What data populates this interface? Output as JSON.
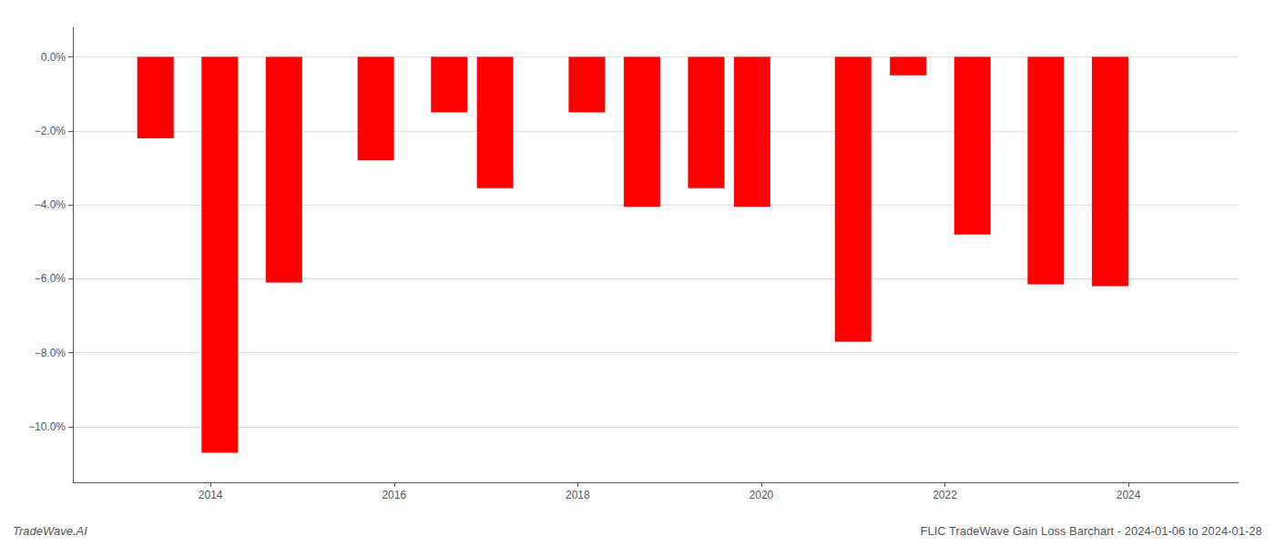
{
  "chart_data": {
    "type": "bar",
    "x": [
      2013.4,
      2014.1,
      2014.8,
      2015.8,
      2016.6,
      2017.1,
      2018.1,
      2018.7,
      2019.4,
      2019.9,
      2021.0,
      2021.6,
      2022.3,
      2023.1,
      2023.8
    ],
    "values": [
      -2.2,
      -10.7,
      -6.1,
      -2.8,
      -1.5,
      -3.55,
      -1.5,
      -4.05,
      -3.55,
      -4.05,
      -7.7,
      -0.5,
      -4.8,
      -6.15,
      -6.2
    ],
    "color": "#ff0000",
    "xlim": [
      2012.5,
      2025.2
    ],
    "xticks": [
      2014,
      2016,
      2018,
      2020,
      2022,
      2024
    ],
    "ylim": [
      -11.5,
      0.8
    ],
    "yticks": [
      {
        "value": 0.0,
        "label": "0.0%"
      },
      {
        "value": -2.0,
        "label": "−2.0%"
      },
      {
        "value": -4.0,
        "label": "−4.0%"
      },
      {
        "value": -6.0,
        "label": "−6.0%"
      },
      {
        "value": -8.0,
        "label": "−8.0%"
      },
      {
        "value": -10.0,
        "label": "−10.0%"
      }
    ],
    "grid": true,
    "annotations": [
      "TradeWave.AI",
      "FLIC TradeWave Gain Loss Barchart - 2024-01-06 to 2024-01-28"
    ]
  }
}
